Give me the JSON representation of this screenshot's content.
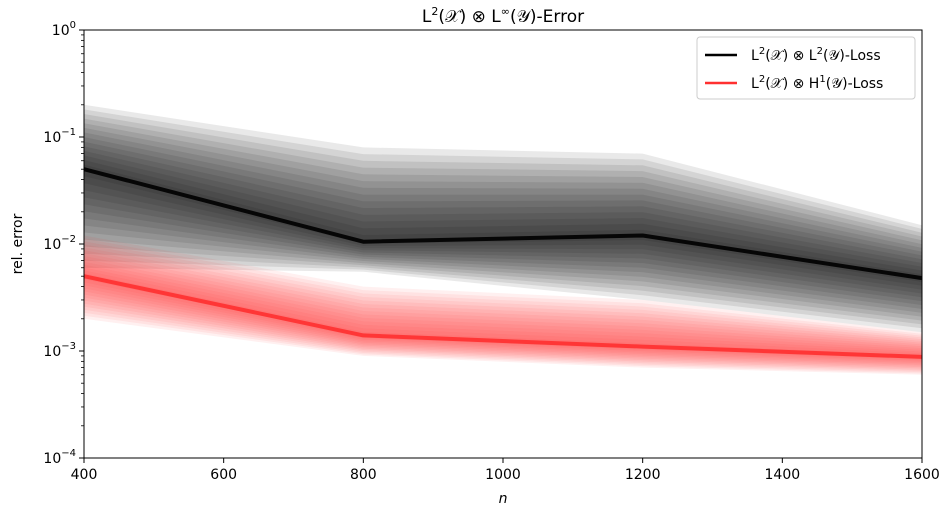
{
  "chart_data": {
    "type": "line",
    "title": "L²(𝒳) ⊗ L^∞(𝒴)-Error",
    "title_parts": {
      "a": "L",
      "a_sup": "2",
      "b": "(𝒳) ⊗ L",
      "b_sup": "∞",
      "c": "(𝒴)-Error"
    },
    "xlabel": "n",
    "ylabel": "rel. error",
    "xlim": [
      400,
      1600
    ],
    "ylim": [
      0.0001,
      1
    ],
    "yscale": "log",
    "x_ticks": [
      400,
      600,
      800,
      1000,
      1200,
      1400,
      1600
    ],
    "x_tick_labels": [
      "400",
      "600",
      "800",
      "1000",
      "1200",
      "1400",
      "1600"
    ],
    "y_ticks": [
      1,
      0.1,
      0.01,
      0.001,
      0.0001
    ],
    "y_tick_labels": [
      {
        "base": "10",
        "exp": "0"
      },
      {
        "base": "10",
        "exp": "−1"
      },
      {
        "base": "10",
        "exp": "−2"
      },
      {
        "base": "10",
        "exp": "−3"
      },
      {
        "base": "10",
        "exp": "−4"
      }
    ],
    "legend_position": "top-right",
    "grid": false,
    "x": [
      400,
      800,
      1200,
      1600
    ],
    "series": [
      {
        "name": "L²(𝒳) ⊗ L²(𝒴)-Loss",
        "name_parts": {
          "a": "L",
          "a_sup": "2",
          "b": "(𝒳) ⊗ L",
          "b_sup": "2",
          "c": "(𝒴)-Loss"
        },
        "color": "#000000",
        "values": [
          0.05,
          0.0105,
          0.012,
          0.0048
        ],
        "band_lower": [
          0.006,
          0.0055,
          0.003,
          0.0015
        ],
        "band_upper": [
          0.2,
          0.08,
          0.07,
          0.015
        ]
      },
      {
        "name": "L²(𝒳) ⊗ H¹(𝒴)-Loss",
        "name_parts": {
          "a": "L",
          "a_sup": "2",
          "b": "(𝒳) ⊗ H",
          "b_sup": "1",
          "c": "(𝒴)-Loss"
        },
        "color": "#ff3030",
        "values": [
          0.005,
          0.0014,
          0.0011,
          0.00088
        ],
        "band_lower": [
          0.002,
          0.0009,
          0.0007,
          0.0006
        ],
        "band_upper": [
          0.012,
          0.004,
          0.003,
          0.0015
        ]
      }
    ]
  }
}
